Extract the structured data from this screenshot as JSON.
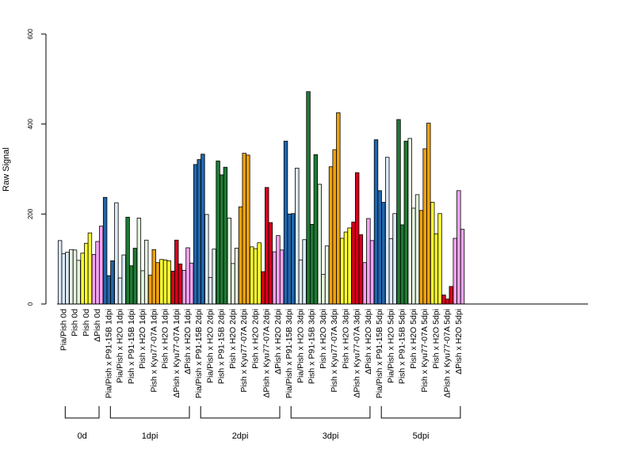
{
  "chart_data": {
    "type": "bar",
    "title": "",
    "xlabel": "",
    "ylabel": "Raw Signal",
    "ylim": [
      0,
      600
    ],
    "yticks": [
      "0",
      "200",
      "400",
      "600"
    ],
    "grid": false,
    "legend": "none",
    "colors": {
      "Pia/Pish": "#dce9f7",
      "Pish": "#ffff33",
      "ΔPish": "#f5a3f2",
      "Pia/Pish x P91-15B": "#2166ac",
      "Pia/Pish x H2O": "#dce9f7",
      "Pish x P91-15B": "#1f7a35",
      "Pish x H2O": "#e6f5e0",
      "Pish x Kyu77-07A": "#f2a10c",
      "ΔPish x Kyu77-07A": "#d7001b",
      "ΔPish x H2O": "#f5a3f2"
    },
    "categories": [
      "Pia/Pish 0d",
      "Pish 0d",
      "Pish 0d",
      "ΔPish 0d",
      "Pia/Pish x P91-15B 1dpi",
      "Pia/Pish x H2O 1dpi",
      "Pish x P91-15B 1dpi",
      "Pish x H2O 1dpi",
      "Pish x Kyu77-07A 1dpi",
      "Pish x H2O 1dpi",
      "ΔPish x Kyu77-07A 1dpi",
      "ΔPish x H2O 1dpi",
      "Pia/Pish x P91-15B 2dpi",
      "Pia/Pish x H2O 2dpi",
      "Pish x P91-15B 2dpi",
      "Pish x H2O 2dpi",
      "Pish x Kyu77-07A 2dpi",
      "Pish x H2O 2dpi",
      "ΔPish x Kyu77-07A 2dpi",
      "ΔPish x H2O 2dpi",
      "Pia/Pish x P91-15B 3dpi",
      "Pia/Pish x H2O 3dpi",
      "Pish x P91-15B 3dpi",
      "Pish x H2O 3dpi",
      "Pish x Kyu77-07A 3dpi",
      "Pish x H2O 3dpi",
      "ΔPish x Kyu77-07A 3dpi",
      "ΔPish x H2O 3dpi",
      "Pia/Pish x P91-15B 5dpi",
      "Pia/Pish x H2O 5dpi",
      "Pish x P91-15B 5dpi",
      "Pish x H2O 5dpi",
      "Pish x Kyu77-07A 5dpi",
      "Pish x H2O 5dpi",
      "ΔPish x Kyu77-07A 5dpi",
      "ΔPish x H2O 5dpi"
    ],
    "category_colors": [
      "#dce9f7",
      "#e6f5e0",
      "#ffff33",
      "#f5a3f2",
      "#2166ac",
      "#dce9f7",
      "#1f7a35",
      "#e6f5e0",
      "#f2a10c",
      "#ffff33",
      "#d7001b",
      "#f5a3f2",
      "#2166ac",
      "#dce9f7",
      "#1f7a35",
      "#e6f5e0",
      "#f2a10c",
      "#ffff33",
      "#d7001b",
      "#f5a3f2",
      "#2166ac",
      "#dce9f7",
      "#1f7a35",
      "#e6f5e0",
      "#f2a10c",
      "#ffff33",
      "#d7001b",
      "#f5a3f2",
      "#2166ac",
      "#dce9f7",
      "#1f7a35",
      "#e6f5e0",
      "#f2a10c",
      "#ffff33",
      "#d7001b",
      "#f5a3f2"
    ],
    "values": [
      [
        141,
        112,
        115
      ],
      [
        121,
        120,
        97
      ],
      [
        113,
        135,
        158
      ],
      [
        110,
        139,
        173
      ],
      [
        237,
        63,
        96
      ],
      [
        225,
        58,
        109
      ],
      [
        193,
        85,
        124
      ],
      [
        191,
        74,
        142
      ],
      [
        64,
        121,
        92
      ],
      [
        99,
        98,
        96
      ],
      [
        73,
        142,
        89
      ],
      [
        75,
        125,
        91
      ],
      [
        310,
        321,
        333
      ],
      [
        199,
        59,
        122
      ],
      [
        318,
        287,
        304
      ],
      [
        191,
        90,
        124
      ],
      [
        216,
        335,
        331
      ],
      [
        127,
        123,
        136
      ],
      [
        72,
        259,
        181
      ],
      [
        116,
        152,
        120
      ],
      [
        362,
        200,
        201
      ],
      [
        302,
        98,
        143
      ],
      [
        472,
        177,
        332
      ],
      [
        266,
        66,
        129
      ],
      [
        305,
        343,
        425
      ],
      [
        146,
        160,
        169
      ],
      [
        182,
        292,
        154
      ],
      [
        92,
        190,
        141
      ],
      [
        365,
        252,
        226
      ],
      [
        326,
        145,
        201
      ],
      [
        410,
        176,
        362
      ],
      [
        368,
        213,
        243
      ],
      [
        208,
        345,
        402
      ],
      [
        226,
        156,
        201
      ],
      [
        20,
        11,
        39
      ],
      [
        146,
        252,
        166
      ]
    ],
    "groups": [
      {
        "label": "0d",
        "start": 0,
        "end": 3
      },
      {
        "label": "1dpi",
        "start": 4,
        "end": 11
      },
      {
        "label": "2dpi",
        "start": 12,
        "end": 19
      },
      {
        "label": "3dpi",
        "start": 20,
        "end": 27
      },
      {
        "label": "5dpi",
        "start": 28,
        "end": 35
      }
    ]
  }
}
